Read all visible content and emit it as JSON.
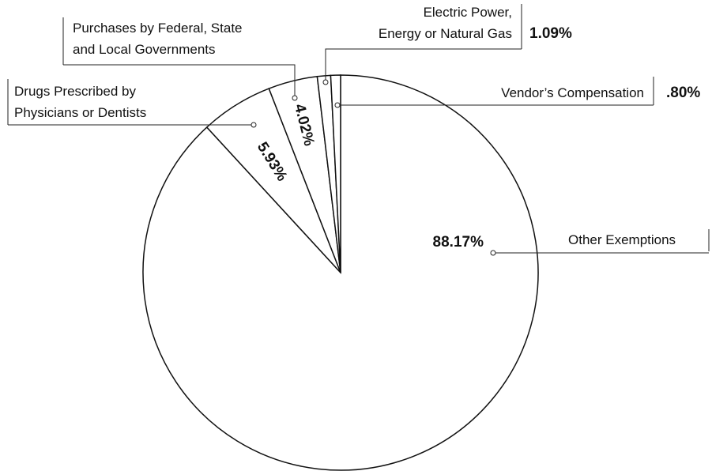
{
  "chart_data": {
    "type": "pie",
    "categories": [
      "Other Exemptions",
      "Drugs Prescribed by\nPhysicians or Dentists",
      "Purchases by Federal, State\nand Local Governments",
      "Electric Power,\nEnergy or Natural Gas",
      "Vendor’s Compensation"
    ],
    "values": [
      88.17,
      5.93,
      4.02,
      1.09,
      0.8
    ],
    "value_labels": [
      "88.17%",
      "5.93%",
      "4.02%",
      "1.09%",
      ".80%"
    ],
    "color": "#ffffff"
  }
}
